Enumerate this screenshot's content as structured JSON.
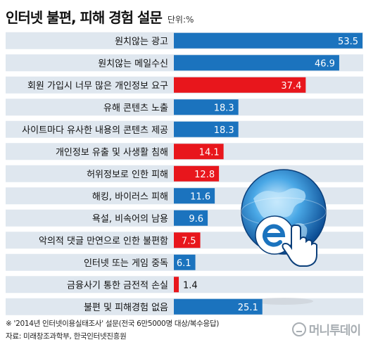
{
  "chart_data": {
    "type": "bar",
    "orientation": "horizontal",
    "title": "인터넷 불편, 피해 경험 설문",
    "unit": "단위:%",
    "categories": [
      "원치않는 광고",
      "원치않는 메일수신",
      "회원 가입시 너무 많은 개인정보 요구",
      "유해 콘텐츠 노출",
      "사이트마다 유사한 내용의 콘텐츠 제공",
      "개인정보 유출 및 사생활 침해",
      "허위정보로 인한 피해",
      "해킹, 바이러스 피해",
      "욕설, 비속어의 남용",
      "악의적 댓글 만연으로 인한 불편함",
      "인터넷 또는 게임 중독",
      "금융사기 통한 금전적 손실",
      "불편 및 피해경험 없음"
    ],
    "values": [
      53.5,
      46.9,
      37.4,
      18.3,
      18.3,
      14.1,
      12.8,
      11.6,
      9.6,
      7.5,
      6.1,
      1.4,
      25.1
    ],
    "value_labels": [
      "53.5",
      "46.9",
      "37.4",
      "18.3",
      "18.3",
      "14.1",
      "12.8",
      "11.6",
      "9.6",
      "7.5",
      "6.1",
      "1.4",
      "25.1"
    ],
    "highlight": [
      false,
      false,
      true,
      false,
      false,
      true,
      true,
      false,
      false,
      true,
      false,
      true,
      false
    ],
    "colors": {
      "default": "#1b73be",
      "highlight": "#e8161c",
      "band": "#dfe7ef"
    },
    "xlim": [
      0,
      53.5
    ],
    "grid": false,
    "legend": "none"
  },
  "notes": {
    "footnote": "※ '2014년 인터넷이용실태조사' 설문(전국 6만5000명 대상/복수응답)",
    "source": "자료: 미래창조과학부, 한국인터넷진흥원"
  },
  "watermark": {
    "text": "머니투데이"
  },
  "illustration": {
    "icon": "globe-cursor-icon"
  }
}
